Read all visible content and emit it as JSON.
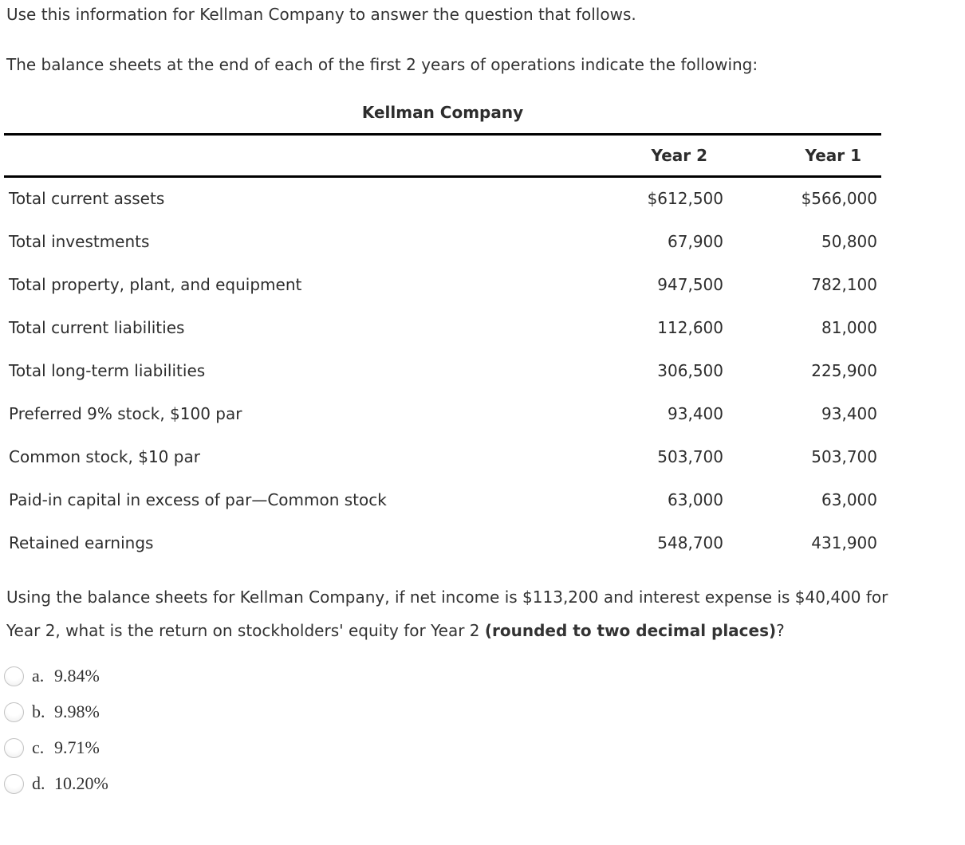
{
  "intro": {
    "line1": "Use this information for Kellman Company to answer the question that follows.",
    "line2": "The balance sheets at the end of each of the first 2 years of operations indicate the following:"
  },
  "table": {
    "title": "Kellman Company",
    "col_year2": "Year 2",
    "col_year1": "Year 1",
    "rows": [
      {
        "label": "Total current assets",
        "year2": "$612,500",
        "year1": "$566,000"
      },
      {
        "label": "Total investments",
        "year2": "67,900",
        "year1": "50,800"
      },
      {
        "label": "Total property, plant, and equipment",
        "year2": "947,500",
        "year1": "782,100"
      },
      {
        "label": "Total current liabilities",
        "year2": "112,600",
        "year1": "81,000"
      },
      {
        "label": "Total long-term liabilities",
        "year2": "306,500",
        "year1": "225,900"
      },
      {
        "label": "Preferred 9% stock, $100 par",
        "year2": "93,400",
        "year1": "93,400"
      },
      {
        "label": "Common stock, $10 par",
        "year2": "503,700",
        "year1": "503,700"
      },
      {
        "label": "Paid-in capital in excess of par—Common stock",
        "year2": "63,000",
        "year1": "63,000"
      },
      {
        "label": "Retained earnings",
        "year2": "548,700",
        "year1": "431,900"
      }
    ]
  },
  "question": {
    "before_bold": "Using the balance sheets for Kellman Company, if net income is $113,200 and interest expense is $40,400 for Year 2, what is the return on stockholders' equity for Year 2 ",
    "bold": "(rounded to two decimal places)",
    "after_bold": "?"
  },
  "options": [
    {
      "letter": "a.",
      "value": "9.84%"
    },
    {
      "letter": "b.",
      "value": "9.98%"
    },
    {
      "letter": "c.",
      "value": "9.71%"
    },
    {
      "letter": "d.",
      "value": "10.20%"
    }
  ],
  "colors": {
    "text": "#333333",
    "table_rule": "#000000",
    "radio_border": "#c3c3c3"
  }
}
